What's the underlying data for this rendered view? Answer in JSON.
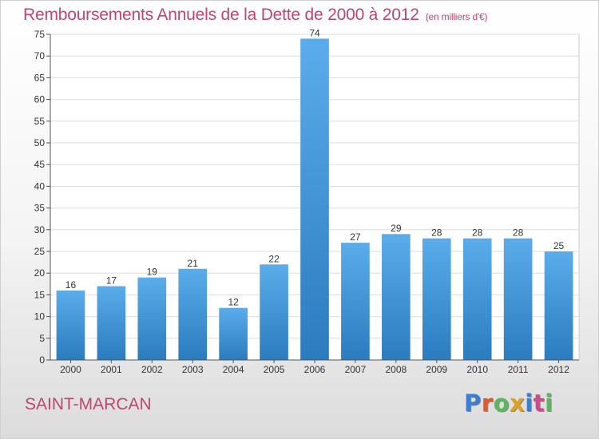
{
  "header": {
    "title": "Remboursements Annuels de la Dette de 2000 à 2012",
    "subtitle": "(en milliers d'€)"
  },
  "footer": {
    "town": "SAINT-MARCAN",
    "logo": "Proxiti"
  },
  "colors": {
    "title": "#c0466f",
    "bar_light": "#5aacea",
    "bar_dark": "#2b7cbf",
    "logo_letters": [
      "#3a7fd0",
      "#e05a2a",
      "#5cb85c",
      "#e0a020",
      "#3a7fd0",
      "#d04a8a",
      "#5cb85c"
    ]
  },
  "chart_data": {
    "type": "bar",
    "categories": [
      "2000",
      "2001",
      "2002",
      "2003",
      "2004",
      "2005",
      "2006",
      "2007",
      "2008",
      "2009",
      "2010",
      "2011",
      "2012"
    ],
    "values": [
      16,
      17,
      19,
      21,
      12,
      22,
      74,
      27,
      29,
      28,
      28,
      28,
      25
    ],
    "ylim": [
      0,
      75
    ],
    "yticks": [
      0,
      5,
      10,
      15,
      20,
      25,
      30,
      35,
      40,
      45,
      50,
      55,
      60,
      65,
      70,
      75
    ],
    "grid": true,
    "data_labels": true
  }
}
